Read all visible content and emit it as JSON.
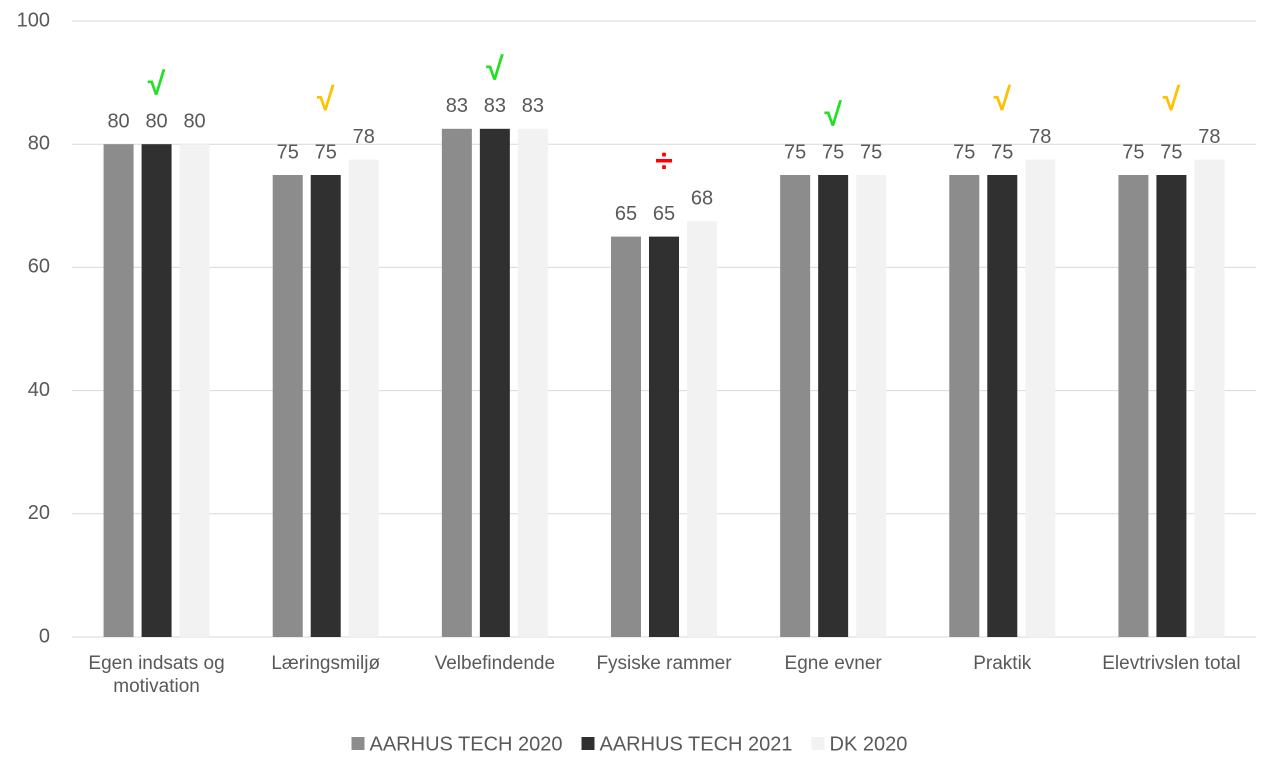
{
  "chart_data": {
    "type": "bar",
    "categories": [
      "Egen indsats og motivation",
      "Læringsmiljø",
      "Velbefindende",
      "Fysiske rammer",
      "Egne evner",
      "Praktik",
      "Elevtrivslen total"
    ],
    "series": [
      {
        "name": "AARHUS TECH 2020",
        "color": "#8c8c8c",
        "values": [
          80,
          75,
          82.5,
          65,
          75,
          75,
          75
        ],
        "value_labels": [
          "80",
          "75",
          "83",
          "65",
          "75",
          "75",
          "75"
        ]
      },
      {
        "name": "AARHUS TECH 2021",
        "color": "#303030",
        "values": [
          80,
          75,
          82.5,
          65,
          75,
          75,
          75
        ],
        "value_labels": [
          "80",
          "75",
          "83",
          "65",
          "75",
          "75",
          "75"
        ]
      },
      {
        "name": "DK 2020",
        "color": "#f2f2f2",
        "values": [
          80,
          77.5,
          82.5,
          67.5,
          75,
          77.5,
          77.5
        ],
        "value_labels": [
          "80",
          "78",
          "83",
          "68",
          "75",
          "78",
          "78"
        ]
      }
    ],
    "markers": [
      "√",
      "√",
      "√",
      "÷",
      "√",
      "√",
      "√"
    ],
    "marker_colors": [
      "#22e022",
      "#ffc000",
      "#22e022",
      "#ff0000",
      "#22e022",
      "#ffc000",
      "#ffc000"
    ],
    "ylim": [
      0,
      100
    ],
    "yticks": [
      0,
      20,
      40,
      60,
      80,
      100
    ],
    "grid": true,
    "legend": "bottom"
  }
}
